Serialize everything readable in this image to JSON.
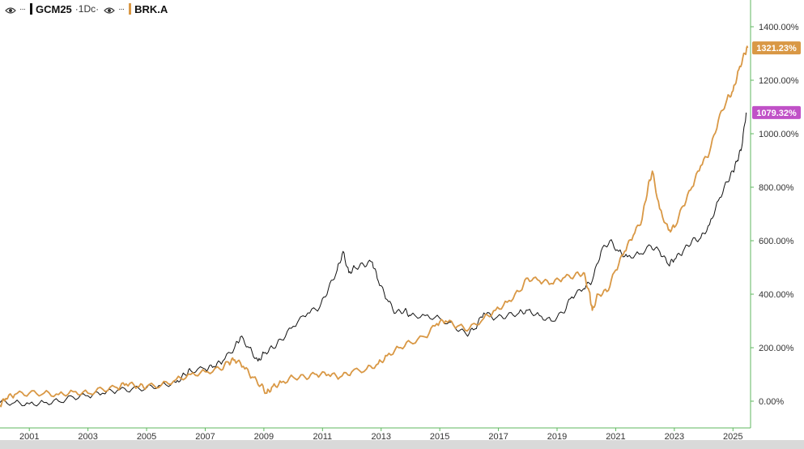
{
  "legend": {
    "series1": {
      "symbol": "GCM25",
      "interval": "·1Dc·",
      "color": "#111111"
    },
    "series2": {
      "symbol": "BRK.A",
      "color": "#d99845"
    }
  },
  "chart_data": {
    "type": "line",
    "y_unit": "%",
    "ylim": [
      -100,
      1500
    ],
    "xlim": [
      2000.0,
      2025.6
    ],
    "y_ticks": [
      "1400.00%",
      "1200.00%",
      "1000.00%",
      "800.00%",
      "600.00%",
      "400.00%",
      "200.00%",
      "0.00%"
    ],
    "y_tick_values": [
      1400,
      1200,
      1000,
      800,
      600,
      400,
      200,
      0
    ],
    "x_ticks": [
      "2001",
      "2003",
      "2005",
      "2007",
      "2009",
      "2011",
      "2013",
      "2015",
      "2017",
      "2019",
      "2021",
      "2023",
      "2025"
    ],
    "x_tick_values": [
      2001,
      2003,
      2005,
      2007,
      2009,
      2011,
      2013,
      2015,
      2017,
      2019,
      2021,
      2023,
      2025
    ],
    "grid": false,
    "series": [
      {
        "name": "GCM25",
        "color": "#111111",
        "last_label": "1079.32%",
        "last_label_color": "#c051c7",
        "points": [
          [
            2000.0,
            -5
          ],
          [
            2000.5,
            -5
          ],
          [
            2001.0,
            -10
          ],
          [
            2001.5,
            -5
          ],
          [
            2002.0,
            0
          ],
          [
            2002.5,
            15
          ],
          [
            2003.0,
            20
          ],
          [
            2003.5,
            30
          ],
          [
            2004.0,
            40
          ],
          [
            2004.5,
            45
          ],
          [
            2005.0,
            50
          ],
          [
            2005.5,
            60
          ],
          [
            2006.0,
            70
          ],
          [
            2006.3,
            100
          ],
          [
            2006.5,
            115
          ],
          [
            2007.0,
            120
          ],
          [
            2007.3,
            130
          ],
          [
            2007.6,
            150
          ],
          [
            2008.0,
            200
          ],
          [
            2008.2,
            240
          ],
          [
            2008.5,
            200
          ],
          [
            2008.8,
            150
          ],
          [
            2009.0,
            180
          ],
          [
            2009.3,
            200
          ],
          [
            2009.6,
            230
          ],
          [
            2010.0,
            280
          ],
          [
            2010.5,
            330
          ],
          [
            2010.9,
            350
          ],
          [
            2011.2,
            420
          ],
          [
            2011.5,
            490
          ],
          [
            2011.7,
            560
          ],
          [
            2011.9,
            480
          ],
          [
            2012.1,
            500
          ],
          [
            2012.4,
            510
          ],
          [
            2012.7,
            520
          ],
          [
            2012.9,
            450
          ],
          [
            2013.2,
            380
          ],
          [
            2013.5,
            330
          ],
          [
            2013.8,
            340
          ],
          [
            2014.0,
            320
          ],
          [
            2014.5,
            320
          ],
          [
            2015.0,
            310
          ],
          [
            2015.5,
            280
          ],
          [
            2015.9,
            250
          ],
          [
            2016.2,
            270
          ],
          [
            2016.5,
            330
          ],
          [
            2016.9,
            310
          ],
          [
            2017.3,
            320
          ],
          [
            2017.7,
            330
          ],
          [
            2018.0,
            340
          ],
          [
            2018.4,
            320
          ],
          [
            2018.8,
            300
          ],
          [
            2019.2,
            330
          ],
          [
            2019.5,
            390
          ],
          [
            2019.9,
            420
          ],
          [
            2020.2,
            450
          ],
          [
            2020.5,
            560
          ],
          [
            2020.8,
            600
          ],
          [
            2021.1,
            560
          ],
          [
            2021.4,
            540
          ],
          [
            2021.8,
            550
          ],
          [
            2022.2,
            580
          ],
          [
            2022.5,
            560
          ],
          [
            2022.8,
            510
          ],
          [
            2023.0,
            530
          ],
          [
            2023.3,
            560
          ],
          [
            2023.6,
            600
          ],
          [
            2023.9,
            610
          ],
          [
            2024.2,
            660
          ],
          [
            2024.5,
            750
          ],
          [
            2024.8,
            820
          ],
          [
            2025.0,
            860
          ],
          [
            2025.15,
            900
          ],
          [
            2025.3,
            950
          ],
          [
            2025.45,
            1079
          ]
        ]
      },
      {
        "name": "BRK.A",
        "color": "#d99845",
        "last_label": "1321.23%",
        "last_label_color": "#d99845",
        "points": [
          [
            2000.0,
            -15
          ],
          [
            2000.2,
            10
          ],
          [
            2000.5,
            25
          ],
          [
            2001.0,
            30
          ],
          [
            2001.5,
            30
          ],
          [
            2002.0,
            25
          ],
          [
            2002.5,
            35
          ],
          [
            2003.0,
            30
          ],
          [
            2003.5,
            45
          ],
          [
            2004.0,
            50
          ],
          [
            2004.3,
            65
          ],
          [
            2004.7,
            55
          ],
          [
            2005.0,
            55
          ],
          [
            2005.5,
            60
          ],
          [
            2006.0,
            80
          ],
          [
            2006.5,
            100
          ],
          [
            2007.0,
            110
          ],
          [
            2007.5,
            120
          ],
          [
            2007.8,
            145
          ],
          [
            2008.0,
            155
          ],
          [
            2008.3,
            130
          ],
          [
            2008.6,
            90
          ],
          [
            2008.9,
            60
          ],
          [
            2009.1,
            30
          ],
          [
            2009.3,
            55
          ],
          [
            2009.6,
            70
          ],
          [
            2010.0,
            90
          ],
          [
            2010.4,
            90
          ],
          [
            2010.8,
            100
          ],
          [
            2011.2,
            100
          ],
          [
            2011.6,
            90
          ],
          [
            2012.0,
            110
          ],
          [
            2012.5,
            120
          ],
          [
            2012.9,
            140
          ],
          [
            2013.2,
            170
          ],
          [
            2013.6,
            200
          ],
          [
            2014.0,
            220
          ],
          [
            2014.5,
            240
          ],
          [
            2014.9,
            290
          ],
          [
            2015.2,
            300
          ],
          [
            2015.6,
            280
          ],
          [
            2016.0,
            270
          ],
          [
            2016.5,
            310
          ],
          [
            2016.9,
            340
          ],
          [
            2017.3,
            370
          ],
          [
            2017.7,
            410
          ],
          [
            2018.0,
            460
          ],
          [
            2018.4,
            450
          ],
          [
            2018.8,
            440
          ],
          [
            2019.2,
            460
          ],
          [
            2019.6,
            470
          ],
          [
            2019.9,
            480
          ],
          [
            2020.1,
            410
          ],
          [
            2020.2,
            340
          ],
          [
            2020.4,
            400
          ],
          [
            2020.7,
            410
          ],
          [
            2021.0,
            490
          ],
          [
            2021.3,
            560
          ],
          [
            2021.6,
            620
          ],
          [
            2021.9,
            680
          ],
          [
            2022.1,
            800
          ],
          [
            2022.25,
            860
          ],
          [
            2022.5,
            720
          ],
          [
            2022.8,
            640
          ],
          [
            2023.0,
            650
          ],
          [
            2023.3,
            730
          ],
          [
            2023.6,
            800
          ],
          [
            2023.9,
            880
          ],
          [
            2024.2,
            930
          ],
          [
            2024.5,
            1050
          ],
          [
            2024.8,
            1130
          ],
          [
            2025.0,
            1160
          ],
          [
            2025.2,
            1240
          ],
          [
            2025.4,
            1300
          ],
          [
            2025.5,
            1321
          ]
        ]
      }
    ]
  }
}
